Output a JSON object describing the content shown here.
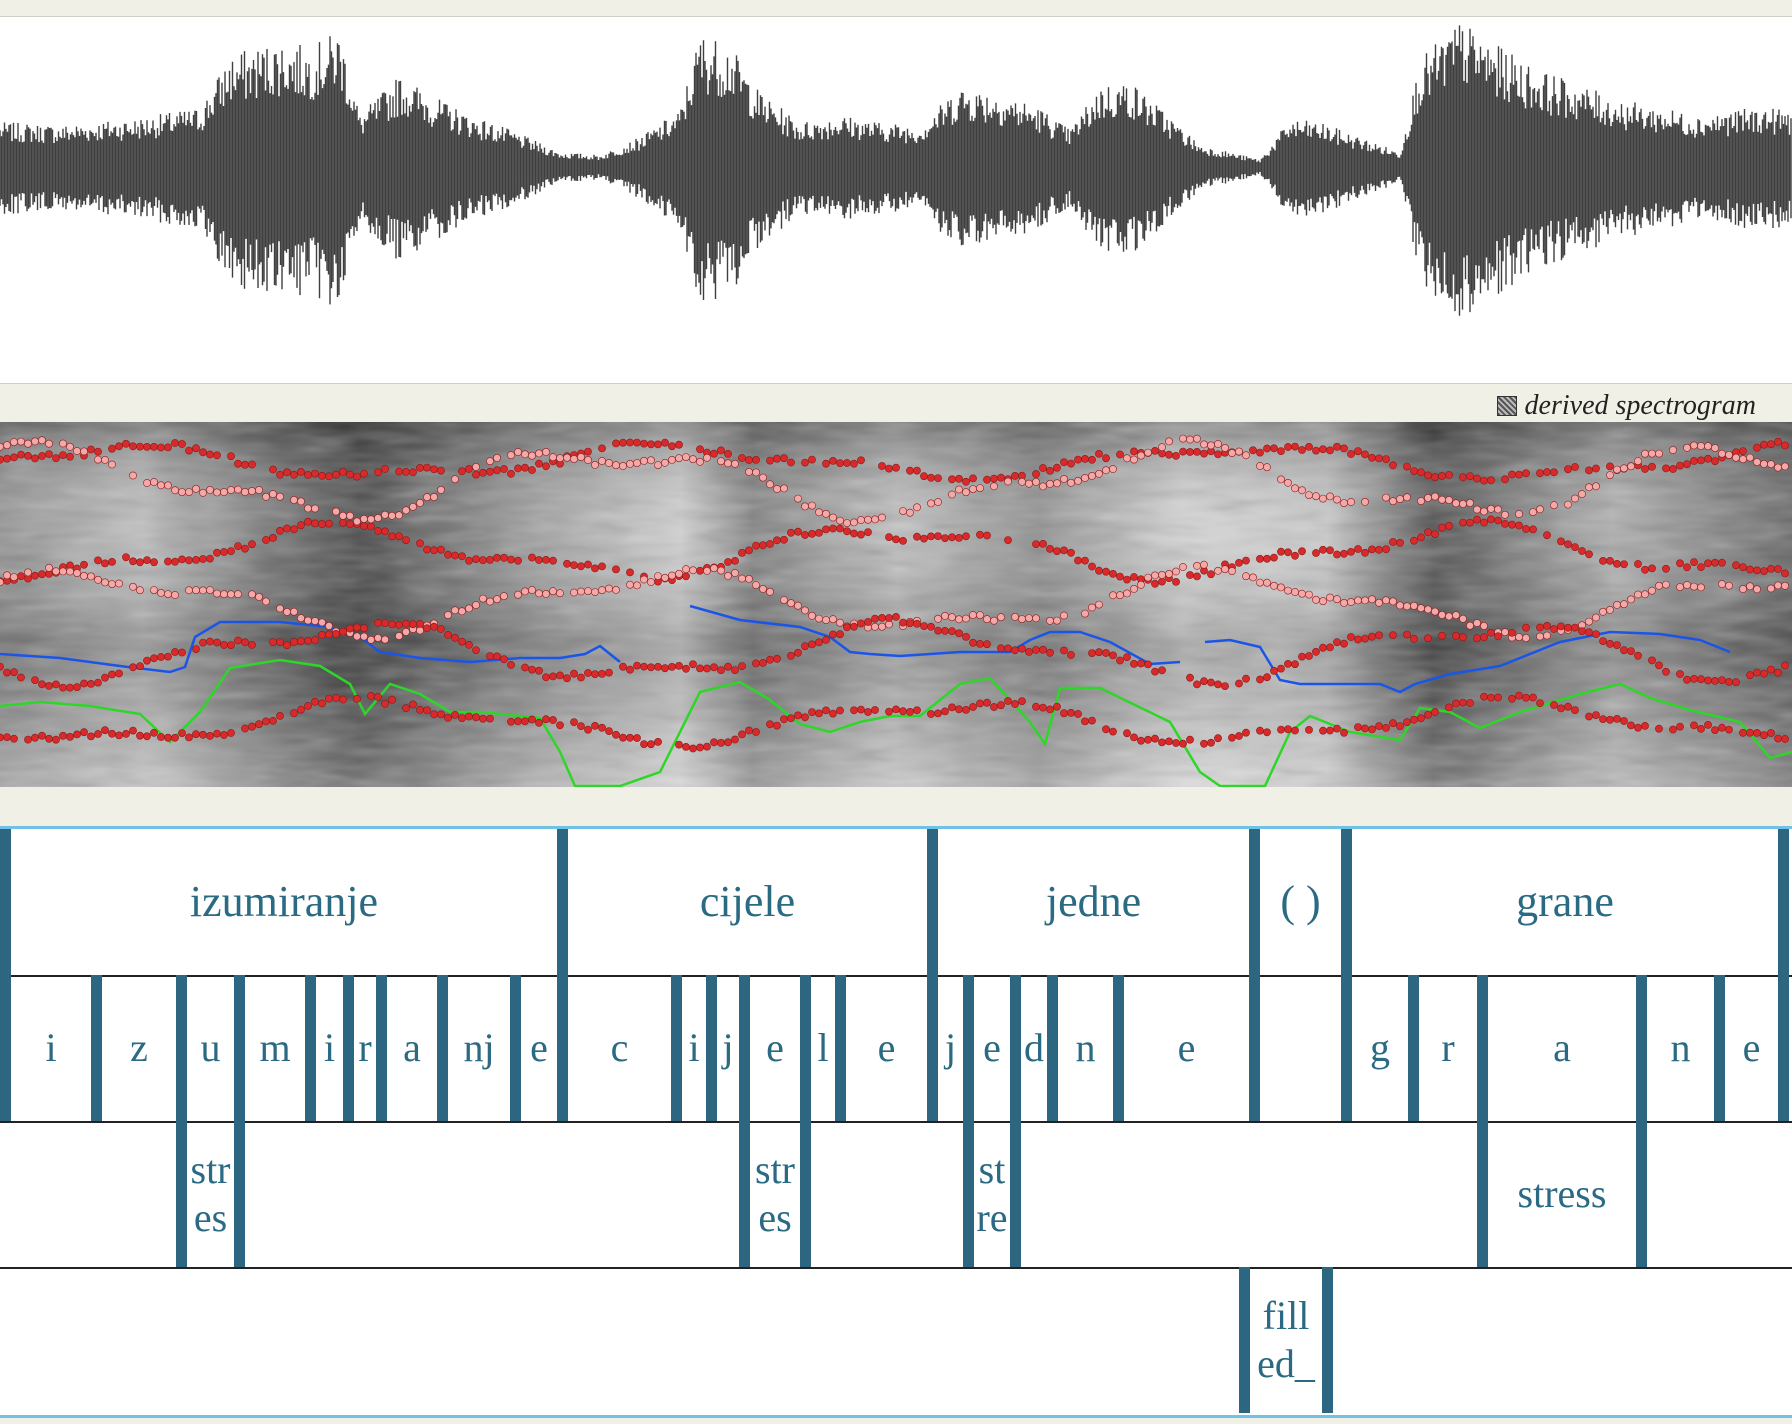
{
  "spectrogram": {
    "caption": "derived spectrogram",
    "overlays": {
      "pitch_color": "#1a55e8",
      "intensity_color": "#2dd628",
      "formant_color": "#d82a2a",
      "formant_weak_color": "#f4a9a9"
    }
  },
  "tiers": [
    {
      "id": "words",
      "intervals": [
        {
          "label": ""
        },
        {
          "label": "izumiranje"
        },
        {
          "label": "cijele"
        },
        {
          "label": "jedne"
        },
        {
          "label": "( )"
        },
        {
          "label": "grane"
        },
        {
          "label": ""
        }
      ]
    },
    {
      "id": "phones",
      "intervals": [
        {
          "label": ""
        },
        {
          "label": "i"
        },
        {
          "label": "z"
        },
        {
          "label": "u"
        },
        {
          "label": "m"
        },
        {
          "label": "i"
        },
        {
          "label": "r"
        },
        {
          "label": "a"
        },
        {
          "label": "nj"
        },
        {
          "label": "e"
        },
        {
          "label": "c"
        },
        {
          "label": "i"
        },
        {
          "label": "j"
        },
        {
          "label": "e"
        },
        {
          "label": "l"
        },
        {
          "label": "e"
        },
        {
          "label": "j"
        },
        {
          "label": "e"
        },
        {
          "label": "d"
        },
        {
          "label": "n"
        },
        {
          "label": "e"
        },
        {
          "label": ""
        },
        {
          "label": "g"
        },
        {
          "label": "r"
        },
        {
          "label": "a"
        },
        {
          "label": "n"
        },
        {
          "label": "e"
        }
      ]
    },
    {
      "id": "stress",
      "intervals": [
        {
          "label": ""
        },
        {
          "label": "stres"
        },
        {
          "label": ""
        },
        {
          "label": "stres"
        },
        {
          "label": ""
        },
        {
          "label": "stre"
        },
        {
          "label": ""
        },
        {
          "label": "stress"
        },
        {
          "label": ""
        }
      ]
    },
    {
      "id": "other",
      "intervals": [
        {
          "label": ""
        },
        {
          "label": "filled_"
        },
        {
          "label": ""
        }
      ]
    }
  ]
}
